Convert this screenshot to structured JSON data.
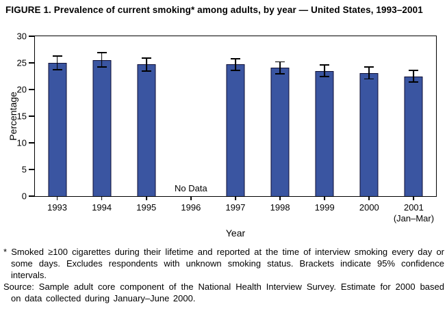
{
  "figure": {
    "title": "FIGURE 1. Prevalence of current smoking* among adults, by year — United States, 1993–2001"
  },
  "chart_data": {
    "type": "bar",
    "title": "FIGURE 1. Prevalence of current smoking* among adults, by year — United States, 1993–2001",
    "xlabel": "Year",
    "ylabel": "Percentage",
    "ylim": [
      0,
      30
    ],
    "yticks": [
      0,
      5,
      10,
      15,
      20,
      25,
      30
    ],
    "categories": [
      "1993",
      "1994",
      "1995",
      "1996",
      "1997",
      "1998",
      "1999",
      "2000",
      "2001"
    ],
    "x_sub_labels": [
      "",
      "",
      "",
      "",
      "",
      "",
      "",
      "",
      "(Jan–Mar)"
    ],
    "values": [
      25.0,
      25.5,
      24.7,
      null,
      24.7,
      24.1,
      23.5,
      23.1,
      22.5
    ],
    "ci_lower": [
      23.7,
      24.2,
      23.5,
      null,
      23.6,
      23.0,
      22.4,
      22.0,
      21.4
    ],
    "ci_upper": [
      26.3,
      26.9,
      25.9,
      null,
      25.8,
      25.2,
      24.6,
      24.2,
      23.6
    ],
    "no_data_label": "No Data",
    "no_data_index": 3,
    "bar_color": "#3a55a1",
    "bar_border_color": "#0d0d33",
    "error_bar_color": "#000000",
    "grid": false,
    "legend": "none"
  },
  "footnotes": {
    "asterisk_note": "* Smoked ≥100 cigarettes during their lifetime and reported at the time of interview smoking every day or some days. Excludes respondents with unknown smoking status. Brackets indicate 95% confidence intervals.",
    "source_note": "Source: Sample adult core component of the National Health Interview Survey. Estimate for 2000 based on data collected during January–June 2000."
  }
}
